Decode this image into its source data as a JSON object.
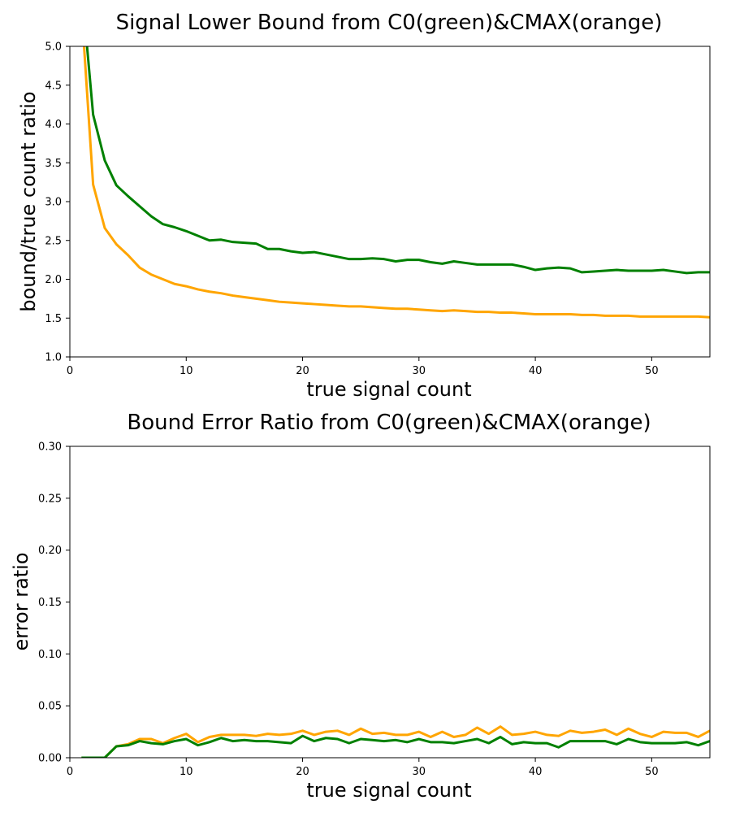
{
  "chart_data": [
    {
      "type": "line",
      "title": "Signal Lower Bound from C0(green)&CMAX(orange)",
      "xlabel": "true signal count",
      "ylabel": "bound/true count ratio",
      "xlim": [
        0,
        55
      ],
      "ylim": [
        1.0,
        5.0
      ],
      "xticks": [
        0,
        10,
        20,
        30,
        40,
        50
      ],
      "yticks": [
        1.0,
        1.5,
        2.0,
        2.5,
        3.0,
        3.5,
        4.0,
        4.5,
        5.0
      ],
      "ytick_labels": [
        "1.0",
        "1.5",
        "2.0",
        "2.5",
        "3.0",
        "3.5",
        "4.0",
        "4.5",
        "5.0"
      ],
      "grid": false,
      "x": [
        1,
        2,
        3,
        4,
        5,
        6,
        7,
        8,
        9,
        10,
        11,
        12,
        13,
        14,
        15,
        16,
        17,
        18,
        19,
        20,
        21,
        22,
        23,
        24,
        25,
        26,
        27,
        28,
        29,
        30,
        31,
        32,
        33,
        34,
        35,
        36,
        37,
        38,
        39,
        40,
        41,
        42,
        43,
        44,
        45,
        46,
        47,
        48,
        49,
        50,
        51,
        52,
        53,
        54,
        55
      ],
      "series": [
        {
          "color": "#008000",
          "values": [
            5.8,
            4.12,
            3.53,
            3.21,
            3.07,
            2.94,
            2.81,
            2.71,
            2.67,
            2.62,
            2.56,
            2.5,
            2.51,
            2.48,
            2.47,
            2.46,
            2.39,
            2.39,
            2.36,
            2.34,
            2.35,
            2.32,
            2.29,
            2.26,
            2.26,
            2.27,
            2.26,
            2.23,
            2.25,
            2.25,
            2.22,
            2.2,
            2.23,
            2.21,
            2.19,
            2.19,
            2.19,
            2.19,
            2.16,
            2.12,
            2.14,
            2.15,
            2.14,
            2.09,
            2.1,
            2.11,
            2.12,
            2.11,
            2.11,
            2.11,
            2.12,
            2.1,
            2.08,
            2.09,
            2.09
          ]
        },
        {
          "color": "#FFA500",
          "values": [
            5.5,
            3.22,
            2.66,
            2.45,
            2.31,
            2.15,
            2.06,
            2.0,
            1.94,
            1.91,
            1.87,
            1.84,
            1.82,
            1.79,
            1.77,
            1.75,
            1.73,
            1.71,
            1.7,
            1.69,
            1.68,
            1.67,
            1.66,
            1.65,
            1.65,
            1.64,
            1.63,
            1.62,
            1.62,
            1.61,
            1.6,
            1.59,
            1.6,
            1.59,
            1.58,
            1.58,
            1.57,
            1.57,
            1.56,
            1.55,
            1.55,
            1.55,
            1.55,
            1.54,
            1.54,
            1.53,
            1.53,
            1.53,
            1.52,
            1.52,
            1.52,
            1.52,
            1.52,
            1.52,
            1.51
          ]
        }
      ]
    },
    {
      "type": "line",
      "title": "Bound Error Ratio from C0(green)&CMAX(orange)",
      "xlabel": "true signal count",
      "ylabel": "error ratio",
      "xlim": [
        0,
        55
      ],
      "ylim": [
        0.0,
        0.3
      ],
      "xticks": [
        0,
        10,
        20,
        30,
        40,
        50
      ],
      "yticks": [
        0.0,
        0.05,
        0.1,
        0.15,
        0.2,
        0.25,
        0.3
      ],
      "ytick_labels": [
        "0.00",
        "0.05",
        "0.10",
        "0.15",
        "0.20",
        "0.25",
        "0.30"
      ],
      "grid": false,
      "x": [
        1,
        2,
        3,
        4,
        5,
        6,
        7,
        8,
        9,
        10,
        11,
        12,
        13,
        14,
        15,
        16,
        17,
        18,
        19,
        20,
        21,
        22,
        23,
        24,
        25,
        26,
        27,
        28,
        29,
        30,
        31,
        32,
        33,
        34,
        35,
        36,
        37,
        38,
        39,
        40,
        41,
        42,
        43,
        44,
        45,
        46,
        47,
        48,
        49,
        50,
        51,
        52,
        53,
        54,
        55
      ],
      "series": [
        {
          "color": "#FFA500",
          "values": [
            0.0,
            0.0,
            0.0,
            0.011,
            0.013,
            0.018,
            0.018,
            0.014,
            0.019,
            0.023,
            0.015,
            0.02,
            0.022,
            0.022,
            0.022,
            0.021,
            0.023,
            0.022,
            0.023,
            0.026,
            0.022,
            0.025,
            0.026,
            0.022,
            0.028,
            0.023,
            0.024,
            0.022,
            0.022,
            0.025,
            0.02,
            0.025,
            0.02,
            0.022,
            0.029,
            0.023,
            0.03,
            0.022,
            0.023,
            0.025,
            0.022,
            0.021,
            0.026,
            0.024,
            0.025,
            0.027,
            0.022,
            0.028,
            0.023,
            0.02,
            0.025,
            0.024,
            0.024,
            0.02,
            0.026
          ]
        },
        {
          "color": "#008000",
          "values": [
            0.0,
            0.0,
            0.0,
            0.011,
            0.012,
            0.016,
            0.014,
            0.013,
            0.016,
            0.018,
            0.012,
            0.015,
            0.019,
            0.016,
            0.017,
            0.016,
            0.016,
            0.015,
            0.014,
            0.021,
            0.016,
            0.019,
            0.018,
            0.014,
            0.018,
            0.017,
            0.016,
            0.017,
            0.015,
            0.018,
            0.015,
            0.015,
            0.014,
            0.016,
            0.018,
            0.014,
            0.02,
            0.013,
            0.015,
            0.014,
            0.014,
            0.01,
            0.016,
            0.016,
            0.016,
            0.016,
            0.013,
            0.018,
            0.015,
            0.014,
            0.014,
            0.014,
            0.015,
            0.012,
            0.016
          ]
        }
      ]
    }
  ]
}
